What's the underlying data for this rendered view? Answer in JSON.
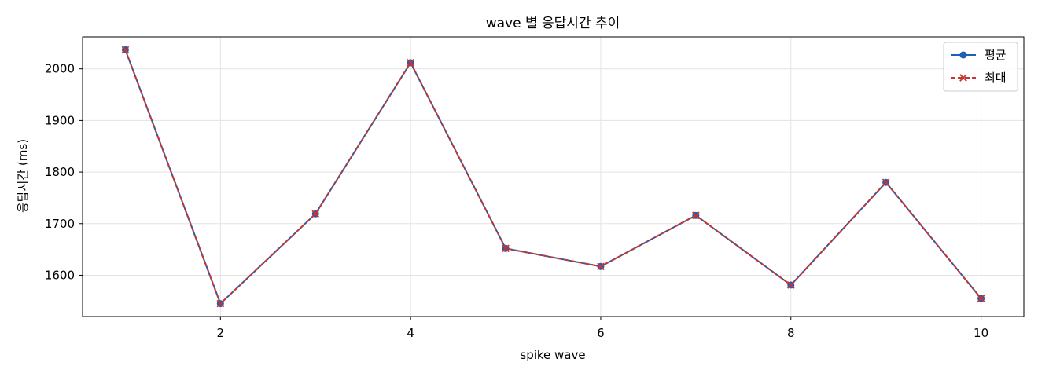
{
  "chart_data": {
    "type": "line",
    "title": "wave 별 응답시간 추이",
    "xlabel": "spike wave",
    "ylabel": "응답시간 (ms)",
    "x": [
      1,
      2,
      3,
      4,
      5,
      6,
      7,
      8,
      9,
      10
    ],
    "xlim": [
      0.55,
      10.45
    ],
    "ylim": [
      1520,
      2062
    ],
    "xticks": [
      2,
      4,
      6,
      8,
      10
    ],
    "yticks": [
      1600,
      1700,
      1800,
      1900,
      2000
    ],
    "grid": true,
    "legend_position": "top-right",
    "series": [
      {
        "name": "평균",
        "values": [
          2037,
          1545,
          1719,
          2012,
          1652,
          1617,
          1716,
          1581,
          1780,
          1555
        ],
        "color": "#1f5fb4",
        "style": "solid",
        "marker": "circle"
      },
      {
        "name": "최대",
        "values": [
          2037,
          1545,
          1719,
          2012,
          1652,
          1617,
          1716,
          1581,
          1780,
          1555
        ],
        "color": "#c8352f",
        "style": "dashed",
        "marker": "x"
      }
    ]
  }
}
